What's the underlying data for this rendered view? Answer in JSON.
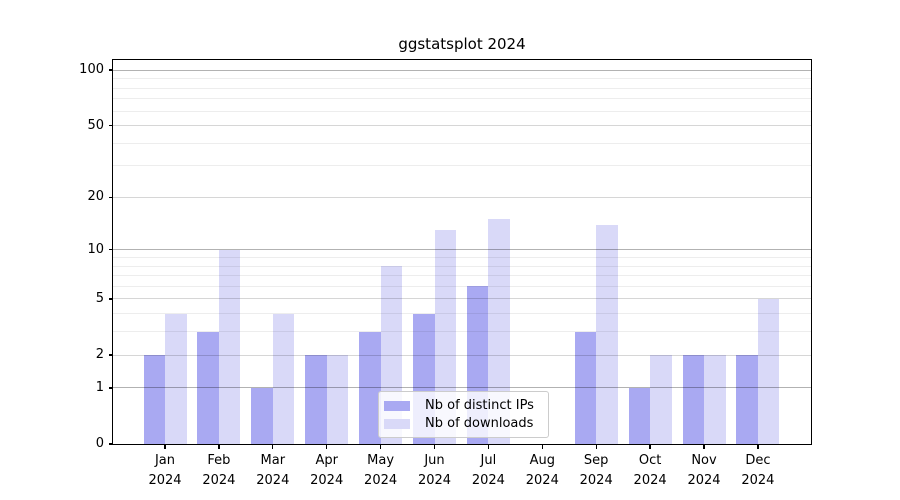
{
  "chart_data": {
    "type": "bar",
    "title": "ggstatsplot 2024",
    "categories": [
      "Jan",
      "Feb",
      "Mar",
      "Apr",
      "May",
      "Jun",
      "Jul",
      "Aug",
      "Sep",
      "Oct",
      "Nov",
      "Dec"
    ],
    "category_year": "2024",
    "series": [
      {
        "name": "Nb of distinct IPs",
        "color": "#a9a9f2",
        "values": [
          2,
          3,
          1,
          2,
          3,
          4,
          6,
          0,
          3,
          1,
          2,
          2
        ]
      },
      {
        "name": "Nb of downloads",
        "color": "#d9d9f8",
        "values": [
          4,
          10,
          4,
          2,
          8,
          13,
          15,
          0,
          14,
          2,
          2,
          5
        ]
      }
    ],
    "yscale": "log10(1+x)",
    "yticks": [
      0,
      1,
      2,
      5,
      10,
      20,
      50,
      100
    ],
    "ytick_strong": [
      1,
      10,
      100
    ],
    "yminor": [
      3,
      4,
      6,
      7,
      8,
      9,
      30,
      40,
      60,
      70,
      80,
      90
    ],
    "ylim": [
      0,
      113
    ],
    "xlabel": "",
    "ylabel": "",
    "grid": true,
    "legend_position": "lower center",
    "colors": {
      "spine": "#000000",
      "text": "#000000",
      "legend_border": "#cccccc",
      "grid_major_strong": "#b3b3b3",
      "grid_major_light": "#d6d6d6",
      "grid_minor": "#ededed"
    }
  }
}
